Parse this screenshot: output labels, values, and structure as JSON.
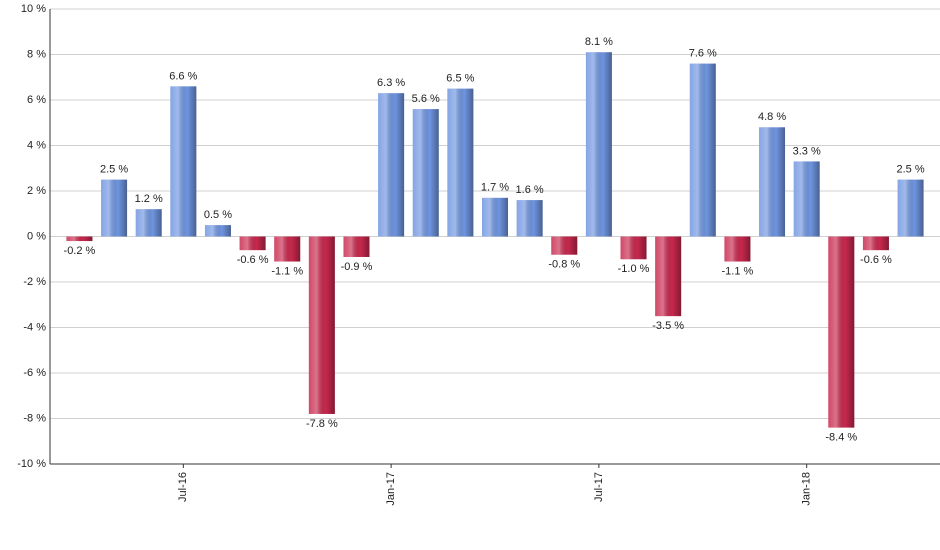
{
  "chart_data": {
    "type": "bar",
    "categories": [
      null,
      null,
      null,
      "Jul-16",
      null,
      null,
      null,
      null,
      null,
      "Jan-17",
      null,
      null,
      null,
      null,
      null,
      "Jul-17",
      null,
      null,
      null,
      null,
      null,
      "Jan-18",
      null,
      null,
      null
    ],
    "values": [
      -0.2,
      2.5,
      1.2,
      6.6,
      0.5,
      -0.6,
      -1.1,
      -7.8,
      -0.9,
      6.3,
      5.6,
      6.5,
      1.7,
      1.6,
      -0.8,
      8.1,
      -1.0,
      -3.5,
      7.6,
      -1.1,
      4.8,
      3.3,
      -8.4,
      -0.6,
      2.5
    ],
    "value_labels": [
      "-0.2 %",
      "2.5 %",
      "1.2 %",
      "6.6 %",
      "0.5 %",
      "-0.6 %",
      "-1.1 %",
      "-7.8 %",
      "-0.9 %",
      "6.3 %",
      "5.6 %",
      "6.5 %",
      "1.7 %",
      "1.6 %",
      "-0.8 %",
      "8.1 %",
      "-1.0 %",
      "-3.5 %",
      "7.6 %",
      "-1.1 %",
      "4.8 %",
      "3.3 %",
      "-8.4 %",
      "-0.6 %",
      "2.5 %"
    ],
    "positive_color": "#6f95e0",
    "negative_color": "#c8284d",
    "ylim": [
      -10,
      10
    ],
    "yticks": [
      {
        "value": -10,
        "label": "-10 %"
      },
      {
        "value": -8,
        "label": "-8 %"
      },
      {
        "value": -6,
        "label": "-6 %"
      },
      {
        "value": -4,
        "label": "-4 %"
      },
      {
        "value": -2,
        "label": "-2 %"
      },
      {
        "value": 0,
        "label": "0 %"
      },
      {
        "value": 2,
        "label": "2 %"
      },
      {
        "value": 4,
        "label": "4 %"
      },
      {
        "value": 6,
        "label": "6 %"
      },
      {
        "value": 8,
        "label": "8 %"
      },
      {
        "value": 10,
        "label": "10 %"
      }
    ],
    "grid": true
  }
}
